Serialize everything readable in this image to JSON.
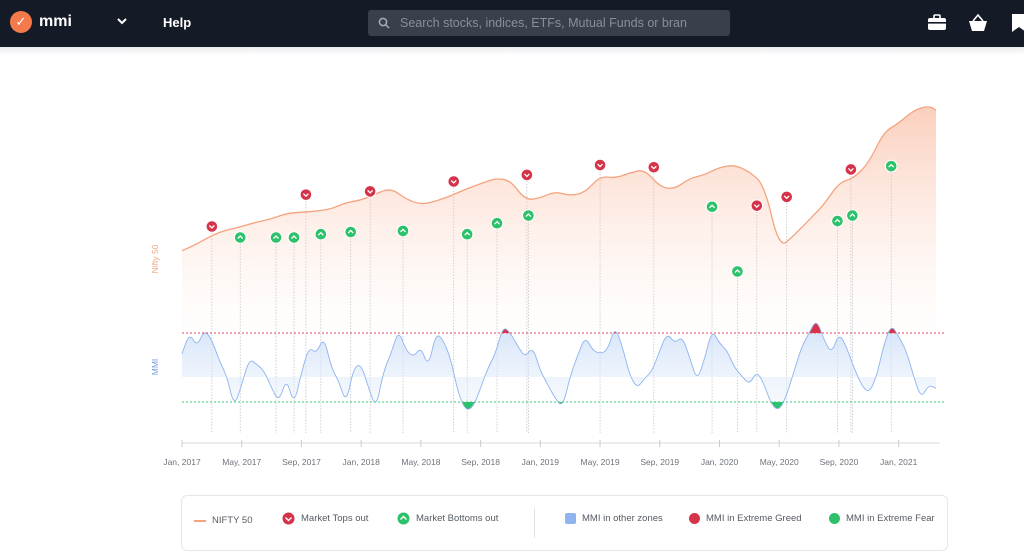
{
  "header": {
    "brand": "mmi",
    "help_label": "Help",
    "search_placeholder": "Search stocks, indices, ETFs, Mutual Funds or bran",
    "icons": [
      "logo-icon",
      "chevron-down-icon",
      "search-icon",
      "briefcase-icon",
      "basket-icon",
      "bookmark-icon"
    ]
  },
  "colors": {
    "nifty": "#f4a37e",
    "greed": "#d4334a",
    "fear": "#2ec16b",
    "mmi_zone": "#8fb4ef"
  },
  "chart_data": {
    "type": "line",
    "ylabel_top": "Nifty 50",
    "ylabel_bottom": "MMI",
    "x_ticks": [
      "Jan, 2017",
      "May, 2017",
      "Sep, 2017",
      "Jan, 2018",
      "May, 2018",
      "Sep, 2018",
      "Jan, 2019",
      "May, 2019",
      "Sep, 2019",
      "Jan, 2020",
      "May, 2020",
      "Sep, 2020",
      "Jan, 2021"
    ],
    "x_range": [
      0,
      50.5
    ],
    "mmi_thresholds": {
      "extreme_greed": 70,
      "extreme_fear": 30
    },
    "nifty": [
      [
        0,
        8200
      ],
      [
        1,
        8500
      ],
      [
        2,
        8900
      ],
      [
        3,
        9150
      ],
      [
        4,
        9300
      ],
      [
        5,
        9500
      ],
      [
        6,
        9650
      ],
      [
        7,
        9900
      ],
      [
        8,
        9950
      ],
      [
        9,
        10000
      ],
      [
        10,
        10100
      ],
      [
        11,
        10400
      ],
      [
        12,
        10500
      ],
      [
        13,
        10800
      ],
      [
        14,
        11050
      ],
      [
        15,
        10550
      ],
      [
        16,
        10300
      ],
      [
        17,
        10450
      ],
      [
        18,
        10700
      ],
      [
        19,
        11000
      ],
      [
        20,
        11250
      ],
      [
        21,
        11500
      ],
      [
        22,
        11400
      ],
      [
        23,
        10500
      ],
      [
        24,
        10600
      ],
      [
        25,
        10900
      ],
      [
        26,
        10700
      ],
      [
        27,
        10850
      ],
      [
        28,
        11600
      ],
      [
        29,
        11500
      ],
      [
        30,
        11750
      ],
      [
        31,
        11900
      ],
      [
        32,
        11100
      ],
      [
        33,
        11000
      ],
      [
        34,
        11500
      ],
      [
        35,
        11650
      ],
      [
        36,
        12000
      ],
      [
        37,
        12100
      ],
      [
        38,
        11800
      ],
      [
        39,
        11200
      ],
      [
        40,
        8300
      ],
      [
        41,
        8900
      ],
      [
        42,
        9600
      ],
      [
        43,
        10300
      ],
      [
        44,
        11300
      ],
      [
        45,
        11500
      ],
      [
        46,
        12200
      ],
      [
        47,
        13600
      ],
      [
        48,
        14000
      ],
      [
        49,
        14600
      ],
      [
        50,
        14800
      ],
      [
        50.5,
        14600
      ]
    ],
    "mmi": [
      [
        0,
        58
      ],
      [
        0.5,
        70
      ],
      [
        1,
        62
      ],
      [
        1.5,
        72
      ],
      [
        2,
        66
      ],
      [
        2.5,
        54
      ],
      [
        3,
        45
      ],
      [
        3.5,
        27
      ],
      [
        4,
        40
      ],
      [
        4.5,
        55
      ],
      [
        5,
        52
      ],
      [
        5.5,
        48
      ],
      [
        6,
        38
      ],
      [
        6.5,
        30
      ],
      [
        7,
        44
      ],
      [
        7.5,
        28
      ],
      [
        8,
        47
      ],
      [
        8.5,
        62
      ],
      [
        9,
        58
      ],
      [
        9.5,
        68
      ],
      [
        10,
        50
      ],
      [
        10.5,
        42
      ],
      [
        11,
        29
      ],
      [
        11.5,
        50
      ],
      [
        12,
        52
      ],
      [
        12.5,
        38
      ],
      [
        13,
        26
      ],
      [
        13.5,
        48
      ],
      [
        14,
        58
      ],
      [
        14.5,
        72
      ],
      [
        15,
        60
      ],
      [
        15.5,
        56
      ],
      [
        16,
        62
      ],
      [
        16.5,
        50
      ],
      [
        17,
        70
      ],
      [
        17.5,
        66
      ],
      [
        18,
        55
      ],
      [
        18.5,
        35
      ],
      [
        19,
        25
      ],
      [
        19.5,
        27
      ],
      [
        20,
        38
      ],
      [
        20.5,
        50
      ],
      [
        21,
        58
      ],
      [
        21.5,
        74
      ],
      [
        22,
        70
      ],
      [
        22.5,
        62
      ],
      [
        23,
        56
      ],
      [
        23.5,
        62
      ],
      [
        24,
        48
      ],
      [
        24.5,
        40
      ],
      [
        25,
        32
      ],
      [
        25.5,
        27
      ],
      [
        26,
        45
      ],
      [
        26.5,
        57
      ],
      [
        27,
        68
      ],
      [
        27.5,
        60
      ],
      [
        28,
        58
      ],
      [
        28.5,
        60
      ],
      [
        29,
        74
      ],
      [
        29.5,
        62
      ],
      [
        30,
        45
      ],
      [
        30.5,
        38
      ],
      [
        31,
        44
      ],
      [
        31.5,
        48
      ],
      [
        32,
        60
      ],
      [
        32.5,
        70
      ],
      [
        33,
        64
      ],
      [
        33.5,
        68
      ],
      [
        34,
        56
      ],
      [
        34.5,
        42
      ],
      [
        35,
        55
      ],
      [
        35.5,
        72
      ],
      [
        36,
        64
      ],
      [
        36.5,
        60
      ],
      [
        37,
        50
      ],
      [
        37.5,
        45
      ],
      [
        38,
        40
      ],
      [
        38.5,
        48
      ],
      [
        39,
        40
      ],
      [
        39.5,
        28
      ],
      [
        40,
        25
      ],
      [
        40.5,
        34
      ],
      [
        41,
        48
      ],
      [
        41.5,
        62
      ],
      [
        42,
        70
      ],
      [
        42.5,
        78
      ],
      [
        43,
        66
      ],
      [
        43.5,
        58
      ],
      [
        44,
        70
      ],
      [
        44.5,
        62
      ],
      [
        45,
        50
      ],
      [
        45.5,
        40
      ],
      [
        46,
        35
      ],
      [
        46.5,
        44
      ],
      [
        47,
        63
      ],
      [
        47.5,
        75
      ],
      [
        48,
        68
      ],
      [
        48.5,
        60
      ],
      [
        49,
        45
      ],
      [
        49.5,
        32
      ],
      [
        50,
        40
      ],
      [
        50.5,
        38
      ]
    ],
    "market_tops": [
      {
        "x": 2,
        "y": 9300
      },
      {
        "x": 8.3,
        "y": 10750
      },
      {
        "x": 12.6,
        "y": 10900
      },
      {
        "x": 18.2,
        "y": 11350
      },
      {
        "x": 23.1,
        "y": 11650
      },
      {
        "x": 28,
        "y": 12100
      },
      {
        "x": 31.6,
        "y": 12000
      },
      {
        "x": 38.5,
        "y": 10250
      },
      {
        "x": 40.5,
        "y": 10650
      },
      {
        "x": 44.8,
        "y": 11900
      }
    ],
    "market_bottoms": [
      {
        "x": 3.9,
        "y": 8800
      },
      {
        "x": 6.3,
        "y": 8800
      },
      {
        "x": 7.5,
        "y": 8800
      },
      {
        "x": 9.3,
        "y": 8950
      },
      {
        "x": 11.3,
        "y": 9050
      },
      {
        "x": 14.8,
        "y": 9100
      },
      {
        "x": 19.1,
        "y": 8950
      },
      {
        "x": 21.1,
        "y": 9450
      },
      {
        "x": 23.2,
        "y": 9800
      },
      {
        "x": 35.5,
        "y": 10200
      },
      {
        "x": 37.2,
        "y": 7250
      },
      {
        "x": 43.9,
        "y": 9550
      },
      {
        "x": 44.9,
        "y": 9800
      },
      {
        "x": 47.5,
        "y": 12050
      }
    ]
  },
  "legend": {
    "nifty": "NIFTY 50",
    "tops": "Market Tops out",
    "bottoms": "Market Bottoms out",
    "other": "MMI in other zones",
    "greed": "MMI in Extreme Greed",
    "fear": "MMI in Extreme Fear"
  }
}
